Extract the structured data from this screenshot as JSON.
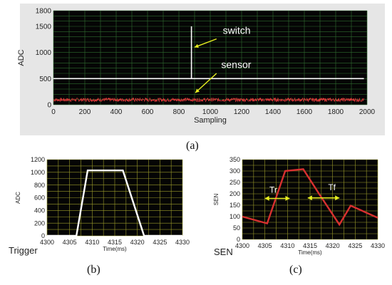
{
  "colors": {
    "panel_bg": "#e6e6e6",
    "plot_bg": "#050505",
    "grid_main": "#2f6b2f",
    "grid_yellow": "#9a9a2a",
    "switch_line": "#ffffff",
    "sensor_line": "#e23b3b",
    "arrow": "#e8f020",
    "trigger_line": "#ffffff",
    "sen_line": "#d83030"
  },
  "captions": {
    "a": "(a)",
    "b": "(b)",
    "c": "(c)"
  },
  "chart_data": [
    {
      "id": "a",
      "type": "line",
      "xlabel": "Sampling",
      "ylabel": "ADC",
      "xlim": [
        0,
        2000
      ],
      "ylim": [
        0,
        1800
      ],
      "x_ticks": [
        "0",
        "200",
        "400",
        "600",
        "800",
        "1000",
        "1200",
        "1400",
        "1600",
        "1800",
        "2000"
      ],
      "y_ticks": [
        "0",
        "500",
        "1000",
        "1500",
        "1800"
      ],
      "grid": true,
      "series": [
        {
          "name": "switch",
          "x": [
            0,
            880,
            880,
            880,
            880,
            1980
          ],
          "y": [
            500,
            500,
            1500,
            500,
            500,
            500
          ]
        },
        {
          "name": "sensor",
          "x": [
            0,
            1980
          ],
          "y": [
            95,
            95
          ],
          "noise": 35
        }
      ],
      "annotations": [
        {
          "text": "switch",
          "x": 1080,
          "y": 1360
        },
        {
          "text": "sensor",
          "x": 1070,
          "y": 700
        }
      ]
    },
    {
      "id": "b",
      "type": "line",
      "xlabel": "Time(ms)",
      "ylabel": "ADC",
      "inner_label": "Trigger",
      "xlim": [
        4300,
        4330
      ],
      "ylim": [
        0,
        1200
      ],
      "x_ticks": [
        "4300",
        "4305",
        "4310",
        "4315",
        "4320",
        "4325",
        "4330"
      ],
      "y_ticks": [
        "0",
        "200",
        "400",
        "600",
        "800",
        "1000",
        "1200"
      ],
      "grid": true,
      "series": [
        {
          "x": [
            4300,
            4306.5,
            4309,
            4316.8,
            4321.5,
            4330
          ],
          "y": [
            0,
            0,
            1030,
            1030,
            0,
            0
          ]
        }
      ]
    },
    {
      "id": "c",
      "type": "line",
      "xlabel": "Time(ms)",
      "ylabel": "SEN",
      "inner_label": "SEN",
      "xlim": [
        4300,
        4330
      ],
      "ylim": [
        0,
        350
      ],
      "x_ticks": [
        "4300",
        "4305",
        "4310",
        "4315",
        "4320",
        "4325",
        "4330"
      ],
      "y_ticks": [
        "0",
        "50",
        "100",
        "150",
        "200",
        "250",
        "300",
        "350"
      ],
      "grid": true,
      "series": [
        {
          "x": [
            4300,
            4305.5,
            4309.5,
            4313.5,
            4317,
            4321.5,
            4324,
            4330
          ],
          "y": [
            100,
            70,
            300,
            308,
            200,
            65,
            148,
            95
          ]
        }
      ],
      "annotations": [
        {
          "text": "Tr",
          "x": 4306,
          "y": 205
        },
        {
          "text": "Tf",
          "x": 4319,
          "y": 215
        }
      ]
    }
  ]
}
